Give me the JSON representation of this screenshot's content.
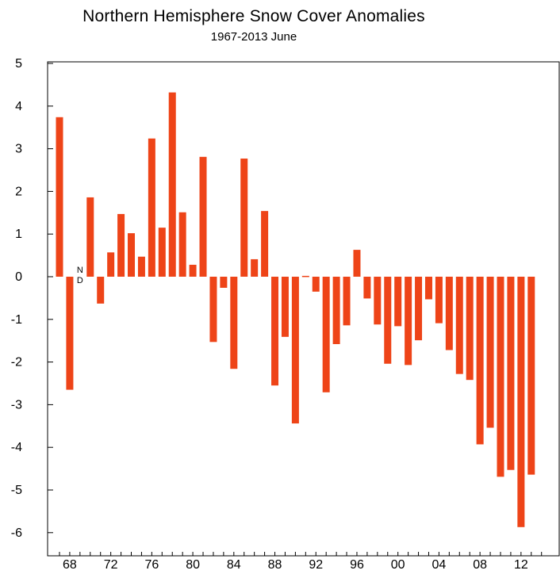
{
  "chart_data": {
    "type": "bar",
    "title": "Northern Hemisphere Snow Cover Anomalies",
    "subtitle": "1967-2013 June",
    "xlabel": "",
    "ylabel": "",
    "ylim": [
      -6.5,
      5
    ],
    "xlim": [
      1966.3,
      2014.5
    ],
    "yticks": [
      5,
      4,
      3,
      2,
      1,
      0,
      -1,
      -2,
      -3,
      -4,
      -5,
      -6
    ],
    "xticks": [
      {
        "year": 1968,
        "label": "68"
      },
      {
        "year": 1972,
        "label": "72"
      },
      {
        "year": 1976,
        "label": "76"
      },
      {
        "year": 1980,
        "label": "80"
      },
      {
        "year": 1984,
        "label": "84"
      },
      {
        "year": 1988,
        "label": "88"
      },
      {
        "year": 1992,
        "label": "92"
      },
      {
        "year": 1996,
        "label": "96"
      },
      {
        "year": 2000,
        "label": "00"
      },
      {
        "year": 2004,
        "label": "04"
      },
      {
        "year": 2008,
        "label": "08"
      },
      {
        "year": 2012,
        "label": "12"
      }
    ],
    "bar_color": "#ee4418",
    "grid": false,
    "annotations": [
      {
        "year": 1969,
        "text_top": "N",
        "text_bottom": "D"
      }
    ],
    "years": [
      1967,
      1968,
      1969,
      1970,
      1971,
      1972,
      1973,
      1974,
      1975,
      1976,
      1977,
      1978,
      1979,
      1980,
      1981,
      1982,
      1983,
      1984,
      1985,
      1986,
      1987,
      1988,
      1989,
      1990,
      1991,
      1992,
      1993,
      1994,
      1995,
      1996,
      1997,
      1998,
      1999,
      2000,
      2001,
      2002,
      2003,
      2004,
      2005,
      2006,
      2007,
      2008,
      2009,
      2010,
      2011,
      2012,
      2013
    ],
    "values": [
      3.74,
      -2.65,
      null,
      1.86,
      -0.63,
      0.57,
      1.47,
      1.02,
      0.47,
      3.24,
      1.15,
      4.32,
      1.51,
      0.28,
      2.81,
      -1.53,
      -0.26,
      -2.16,
      2.77,
      0.41,
      1.54,
      -2.55,
      -1.41,
      -3.44,
      0.02,
      -0.35,
      -2.71,
      -1.58,
      -1.14,
      0.63,
      -0.51,
      -1.12,
      -2.04,
      -1.16,
      -2.07,
      -1.49,
      -0.53,
      -1.09,
      -1.72,
      -2.28,
      -2.42,
      -3.93,
      -3.54,
      -4.69,
      -4.53,
      -5.87,
      -4.64
    ]
  }
}
